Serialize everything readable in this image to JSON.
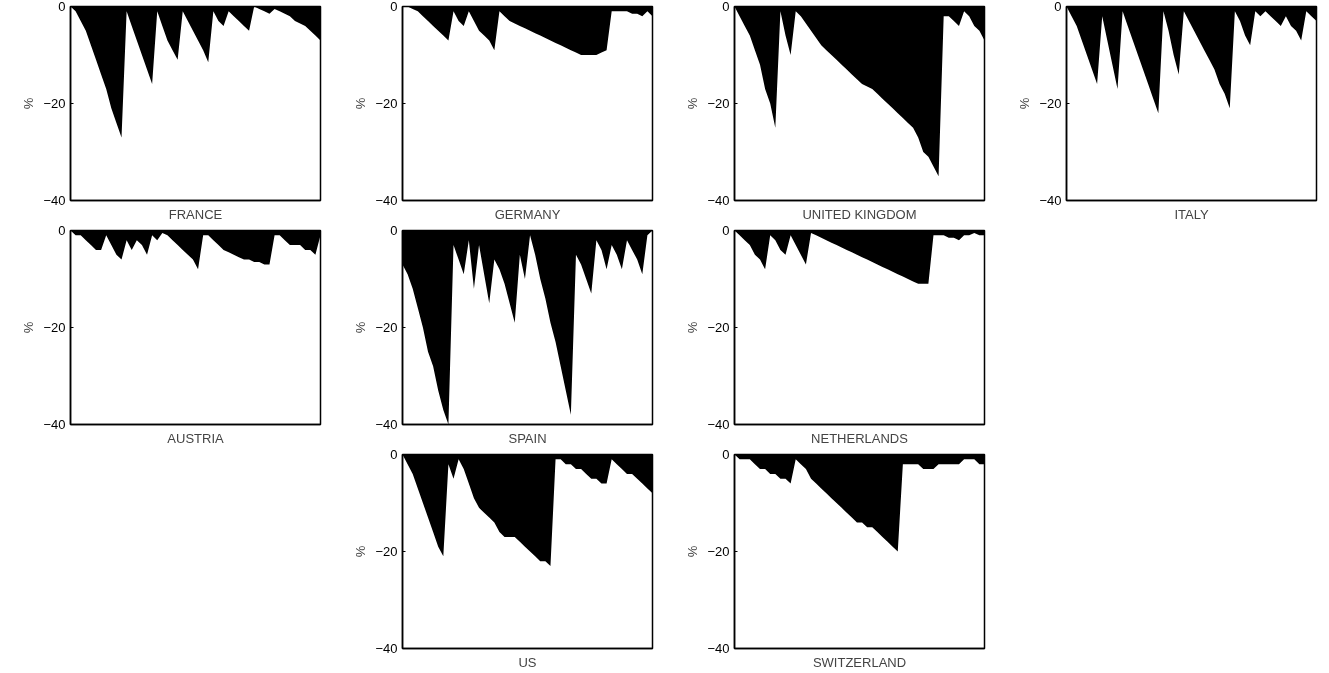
{
  "chart_data": [
    {
      "type": "area",
      "xlabel": "FRANCE",
      "ylabel": "%",
      "color": "#000000",
      "ylim": [
        -40,
        0
      ],
      "yticks": [
        0,
        -20,
        -40
      ],
      "tick_labels": "y",
      "grid": false,
      "categories": [
        null,
        null,
        null,
        null,
        null,
        null,
        null,
        null,
        null,
        null,
        null,
        null,
        null,
        null,
        null,
        null,
        null,
        null,
        null,
        null,
        null,
        null,
        null,
        null,
        null,
        null,
        null,
        null,
        null,
        null,
        null,
        null,
        null,
        null,
        null,
        null,
        null,
        null,
        null,
        null,
        null,
        null,
        null,
        null,
        null,
        null,
        null,
        null,
        null,
        null
      ],
      "values": [
        0,
        -1,
        -3,
        -5,
        -8,
        -11,
        -14,
        -17,
        -21,
        -24,
        -27,
        -1,
        -4,
        -7,
        -10,
        -13,
        -16,
        -1,
        -4,
        -7,
        -9,
        -11,
        -1,
        -3,
        -5,
        -7,
        -9,
        -11.5,
        -1,
        -3,
        -4,
        -1,
        -2,
        -3,
        -4,
        -5,
        0,
        -0.5,
        -1,
        -1.5,
        -0.5,
        -1,
        -1.5,
        -2,
        -3,
        -3.5,
        -4,
        -5,
        -6,
        -7
      ]
    },
    {
      "type": "area",
      "xlabel": "GERMANY",
      "ylabel": "%",
      "color": "#000000",
      "ylim": [
        -40,
        0
      ],
      "yticks": [
        0,
        -20,
        -40
      ],
      "tick_labels": "y",
      "grid": false,
      "categories": [
        null,
        null,
        null,
        null,
        null,
        null,
        null,
        null,
        null,
        null,
        null,
        null,
        null,
        null,
        null,
        null,
        null,
        null,
        null,
        null,
        null,
        null,
        null,
        null,
        null,
        null,
        null,
        null,
        null,
        null,
        null,
        null,
        null,
        null,
        null,
        null,
        null,
        null,
        null,
        null,
        null,
        null,
        null,
        null,
        null,
        null,
        null,
        null,
        null,
        null
      ],
      "values": [
        0,
        0,
        -0.5,
        -1,
        -2,
        -3,
        -4,
        -5,
        -6,
        -7,
        -1,
        -3,
        -4,
        -1,
        -3,
        -5,
        -6,
        -7,
        -9,
        -1,
        -2,
        -3,
        -3.5,
        -4,
        -4.5,
        -5,
        -5.5,
        -6,
        -6.5,
        -7,
        -7.5,
        -8,
        -8.5,
        -9,
        -9.5,
        -10,
        -10,
        -10,
        -10,
        -9.5,
        -9,
        -1,
        -1,
        -1,
        -1,
        -1.5,
        -1.5,
        -2,
        -1,
        -2
      ]
    },
    {
      "type": "area",
      "xlabel": "UNITED KINGDOM",
      "ylabel": "%",
      "color": "#000000",
      "ylim": [
        -40,
        0
      ],
      "yticks": [
        0,
        -20,
        -40
      ],
      "tick_labels": "y",
      "grid": false,
      "categories": [
        null,
        null,
        null,
        null,
        null,
        null,
        null,
        null,
        null,
        null,
        null,
        null,
        null,
        null,
        null,
        null,
        null,
        null,
        null,
        null,
        null,
        null,
        null,
        null,
        null,
        null,
        null,
        null,
        null,
        null,
        null,
        null,
        null,
        null,
        null,
        null,
        null,
        null,
        null,
        null,
        null,
        null,
        null,
        null,
        null,
        null,
        null,
        null,
        null,
        null
      ],
      "values": [
        0,
        -2,
        -4,
        -6,
        -9,
        -12,
        -17,
        -20,
        -25,
        -1,
        -6,
        -10,
        -1,
        -2,
        -3.5,
        -5,
        -6.5,
        -8,
        -9,
        -10,
        -11,
        -12,
        -13,
        -14,
        -15,
        -16,
        -16.5,
        -17,
        -18,
        -19,
        -20,
        -21,
        -22,
        -23,
        -24,
        -25,
        -27,
        -30,
        -31,
        -33,
        -35,
        -2,
        -2,
        -3,
        -4,
        -1,
        -2,
        -4,
        -5,
        -7
      ]
    },
    {
      "type": "area",
      "xlabel": "ITALY",
      "ylabel": "%",
      "color": "#000000",
      "ylim": [
        -40,
        0
      ],
      "yticks": [
        0,
        -20,
        -40
      ],
      "tick_labels": "y",
      "grid": false,
      "categories": [
        null,
        null,
        null,
        null,
        null,
        null,
        null,
        null,
        null,
        null,
        null,
        null,
        null,
        null,
        null,
        null,
        null,
        null,
        null,
        null,
        null,
        null,
        null,
        null,
        null,
        null,
        null,
        null,
        null,
        null,
        null,
        null,
        null,
        null,
        null,
        null,
        null,
        null,
        null,
        null,
        null,
        null,
        null,
        null,
        null,
        null,
        null,
        null,
        null,
        null
      ],
      "values": [
        0,
        -2,
        -4,
        -7,
        -10,
        -13,
        -16,
        -2,
        -7,
        -12,
        -17,
        -1,
        -4,
        -7,
        -10,
        -13,
        -16,
        -19,
        -22,
        -1,
        -5,
        -10,
        -14,
        -1,
        -3,
        -5,
        -7,
        -9,
        -11,
        -13,
        -16,
        -18,
        -21,
        -1,
        -3,
        -6,
        -8,
        -1,
        -2,
        -1,
        -2,
        -3,
        -4,
        -2,
        -4,
        -5,
        -7,
        -1,
        -2,
        -3
      ]
    },
    {
      "type": "area",
      "xlabel": "AUSTRIA",
      "ylabel": "%",
      "color": "#000000",
      "ylim": [
        -40,
        0
      ],
      "yticks": [
        0,
        -20,
        -40
      ],
      "tick_labels": "y",
      "grid": false,
      "categories": [
        null,
        null,
        null,
        null,
        null,
        null,
        null,
        null,
        null,
        null,
        null,
        null,
        null,
        null,
        null,
        null,
        null,
        null,
        null,
        null,
        null,
        null,
        null,
        null,
        null,
        null,
        null,
        null,
        null,
        null,
        null,
        null,
        null,
        null,
        null,
        null,
        null,
        null,
        null,
        null,
        null,
        null,
        null,
        null,
        null,
        null,
        null,
        null,
        null,
        null
      ],
      "values": [
        0,
        -1,
        -1,
        -2,
        -3,
        -4,
        -4,
        -1,
        -3,
        -5,
        -6,
        -2,
        -4,
        -2,
        -3,
        -5,
        -1,
        -2,
        -0.5,
        -1,
        -2,
        -3,
        -4,
        -5,
        -6,
        -8,
        -1,
        -1,
        -2,
        -3,
        -4,
        -4.5,
        -5,
        -5.5,
        -6,
        -6,
        -6.5,
        -6.5,
        -7,
        -7,
        -1,
        -1,
        -2,
        -3,
        -3,
        -3,
        -4,
        -4,
        -5,
        -1
      ]
    },
    {
      "type": "area",
      "xlabel": "SPAIN",
      "ylabel": "%",
      "color": "#000000",
      "ylim": [
        -40,
        0
      ],
      "yticks": [
        0,
        -20,
        -40
      ],
      "tick_labels": "y",
      "grid": false,
      "categories": [
        null,
        null,
        null,
        null,
        null,
        null,
        null,
        null,
        null,
        null,
        null,
        null,
        null,
        null,
        null,
        null,
        null,
        null,
        null,
        null,
        null,
        null,
        null,
        null,
        null,
        null,
        null,
        null,
        null,
        null,
        null,
        null,
        null,
        null,
        null,
        null,
        null,
        null,
        null,
        null,
        null,
        null,
        null,
        null,
        null,
        null,
        null,
        null,
        null,
        null
      ],
      "values": [
        -7,
        -9,
        -12,
        -16,
        -20,
        -25,
        -28,
        -33,
        -37,
        -40,
        -3,
        -6,
        -9,
        -2,
        -12,
        -3,
        -9,
        -15,
        -6,
        -8,
        -11,
        -15,
        -19,
        -5,
        -10,
        -1,
        -5,
        -10,
        -14,
        -19,
        -23,
        -28,
        -33,
        -38,
        -5,
        -7,
        -10,
        -13,
        -2,
        -4,
        -8,
        -3,
        -5,
        -8,
        -2,
        -4,
        -6,
        -9,
        -1,
        0
      ]
    },
    {
      "type": "area",
      "xlabel": "NETHERLANDS",
      "ylabel": "%",
      "color": "#000000",
      "ylim": [
        -40,
        0
      ],
      "yticks": [
        0,
        -20,
        -40
      ],
      "tick_labels": "y",
      "grid": false,
      "categories": [
        null,
        null,
        null,
        null,
        null,
        null,
        null,
        null,
        null,
        null,
        null,
        null,
        null,
        null,
        null,
        null,
        null,
        null,
        null,
        null,
        null,
        null,
        null,
        null,
        null,
        null,
        null,
        null,
        null,
        null,
        null,
        null,
        null,
        null,
        null,
        null,
        null,
        null,
        null,
        null,
        null,
        null,
        null,
        null,
        null,
        null,
        null,
        null,
        null,
        null
      ],
      "values": [
        0,
        -1,
        -2,
        -3,
        -5,
        -6,
        -8,
        -1,
        -2,
        -4,
        -5,
        -1,
        -3,
        -5,
        -7,
        -0.5,
        -1,
        -1.5,
        -2,
        -2.5,
        -3,
        -3.5,
        -4,
        -4.5,
        -5,
        -5.5,
        -6,
        -6.5,
        -7,
        -7.5,
        -8,
        -8.5,
        -9,
        -9.5,
        -10,
        -10.5,
        -11,
        -11,
        -11,
        -1,
        -1,
        -1,
        -1.5,
        -1.5,
        -2,
        -1,
        -1,
        -0.5,
        -1,
        -1
      ]
    },
    {
      "type": "area",
      "xlabel": "US",
      "ylabel": "%",
      "color": "#000000",
      "ylim": [
        -40,
        0
      ],
      "yticks": [
        0,
        -20,
        -40
      ],
      "tick_labels": "y",
      "grid": false,
      "categories": [
        null,
        null,
        null,
        null,
        null,
        null,
        null,
        null,
        null,
        null,
        null,
        null,
        null,
        null,
        null,
        null,
        null,
        null,
        null,
        null,
        null,
        null,
        null,
        null,
        null,
        null,
        null,
        null,
        null,
        null,
        null,
        null,
        null,
        null,
        null,
        null,
        null,
        null,
        null,
        null,
        null,
        null,
        null,
        null,
        null,
        null,
        null,
        null,
        null,
        null
      ],
      "values": [
        0,
        -2,
        -4,
        -7,
        -10,
        -13,
        -16,
        -19,
        -21,
        -2,
        -5,
        -1,
        -3,
        -6,
        -9,
        -11,
        -12,
        -13,
        -14,
        -16,
        -17,
        -17,
        -17,
        -18,
        -19,
        -20,
        -21,
        -22,
        -22,
        -23,
        -1,
        -1,
        -2,
        -2,
        -3,
        -3,
        -4,
        -5,
        -5,
        -6,
        -6,
        -1,
        -2,
        -3,
        -4,
        -4,
        -5,
        -6,
        -7,
        -8
      ]
    },
    {
      "type": "area",
      "xlabel": "SWITZERLAND",
      "ylabel": "%",
      "color": "#000000",
      "ylim": [
        -40,
        0
      ],
      "yticks": [
        0,
        -20,
        -40
      ],
      "tick_labels": "y",
      "grid": false,
      "categories": [
        null,
        null,
        null,
        null,
        null,
        null,
        null,
        null,
        null,
        null,
        null,
        null,
        null,
        null,
        null,
        null,
        null,
        null,
        null,
        null,
        null,
        null,
        null,
        null,
        null,
        null,
        null,
        null,
        null,
        null,
        null,
        null,
        null,
        null,
        null,
        null,
        null,
        null,
        null,
        null,
        null,
        null,
        null,
        null,
        null,
        null,
        null,
        null,
        null,
        null
      ],
      "values": [
        0,
        -1,
        -1,
        -1,
        -2,
        -3,
        -3,
        -4,
        -4,
        -5,
        -5,
        -6,
        -1,
        -2,
        -3,
        -5,
        -6,
        -7,
        -8,
        -9,
        -10,
        -11,
        -12,
        -13,
        -14,
        -14,
        -15,
        -15,
        -16,
        -17,
        -18,
        -19,
        -20,
        -2,
        -2,
        -2,
        -2,
        -3,
        -3,
        -3,
        -2,
        -2,
        -2,
        -2,
        -2,
        -1,
        -1,
        -1,
        -2,
        -2
      ]
    }
  ]
}
